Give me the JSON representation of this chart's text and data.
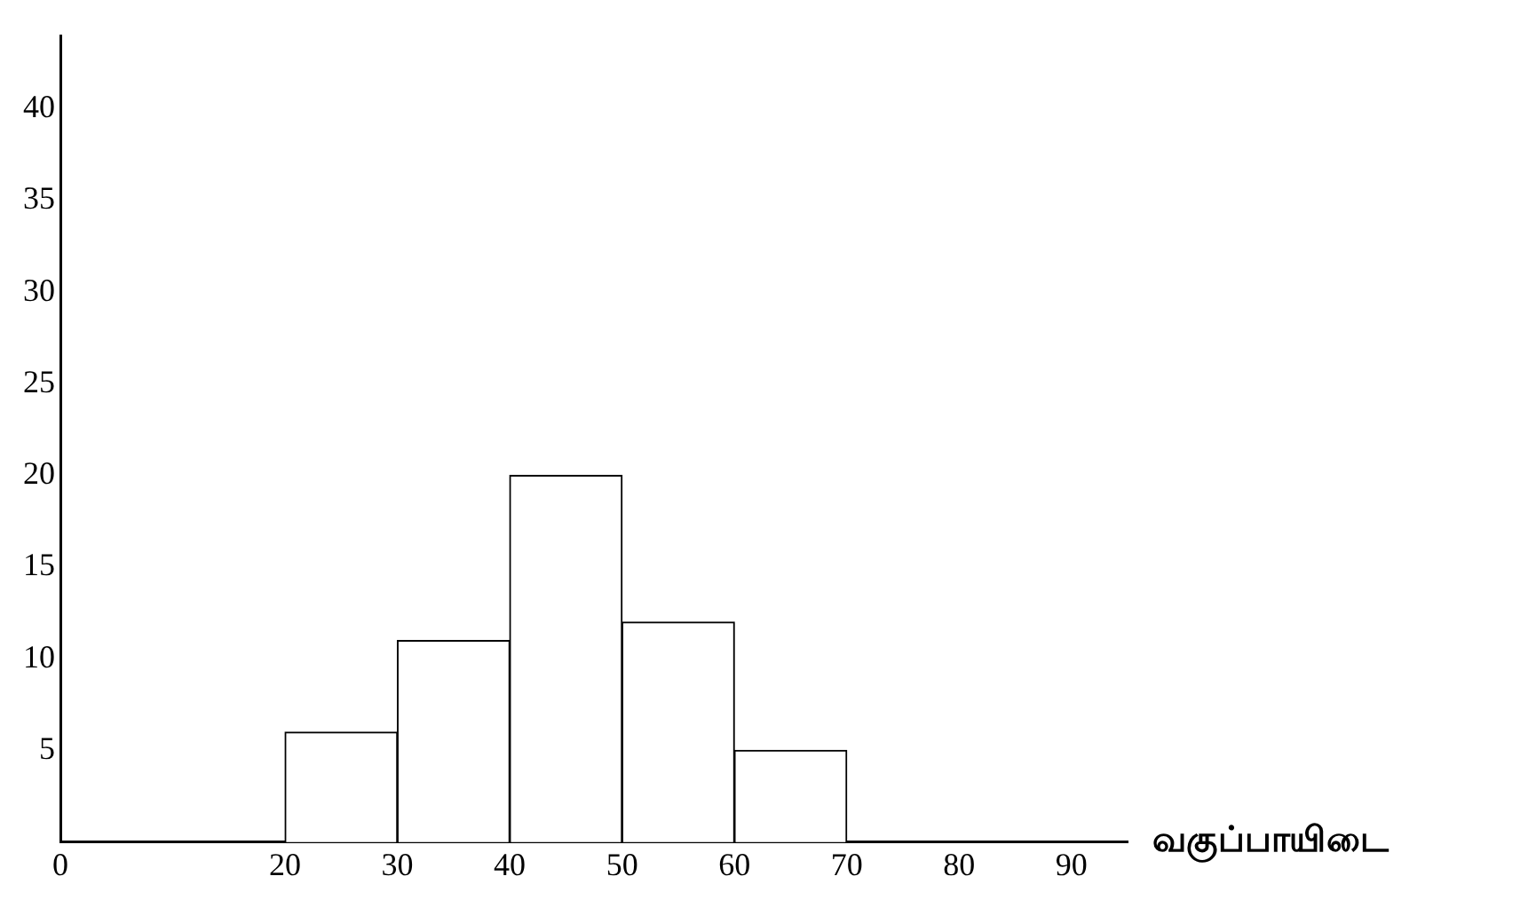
{
  "chart_data": {
    "type": "histogram",
    "xlabel": "வகுப்பாயிடை",
    "bins": [
      20,
      30,
      40,
      50,
      60,
      70
    ],
    "values": [
      6,
      11,
      20,
      12,
      5
    ],
    "color": "#ffffff",
    "xlim": [
      0,
      95
    ],
    "xticks": [
      0,
      20,
      30,
      40,
      50,
      60,
      70,
      80,
      90
    ],
    "ylim": [
      0,
      44
    ],
    "yticks": [
      5,
      10,
      15,
      20,
      25,
      30,
      35,
      40
    ],
    "grid": false
  }
}
